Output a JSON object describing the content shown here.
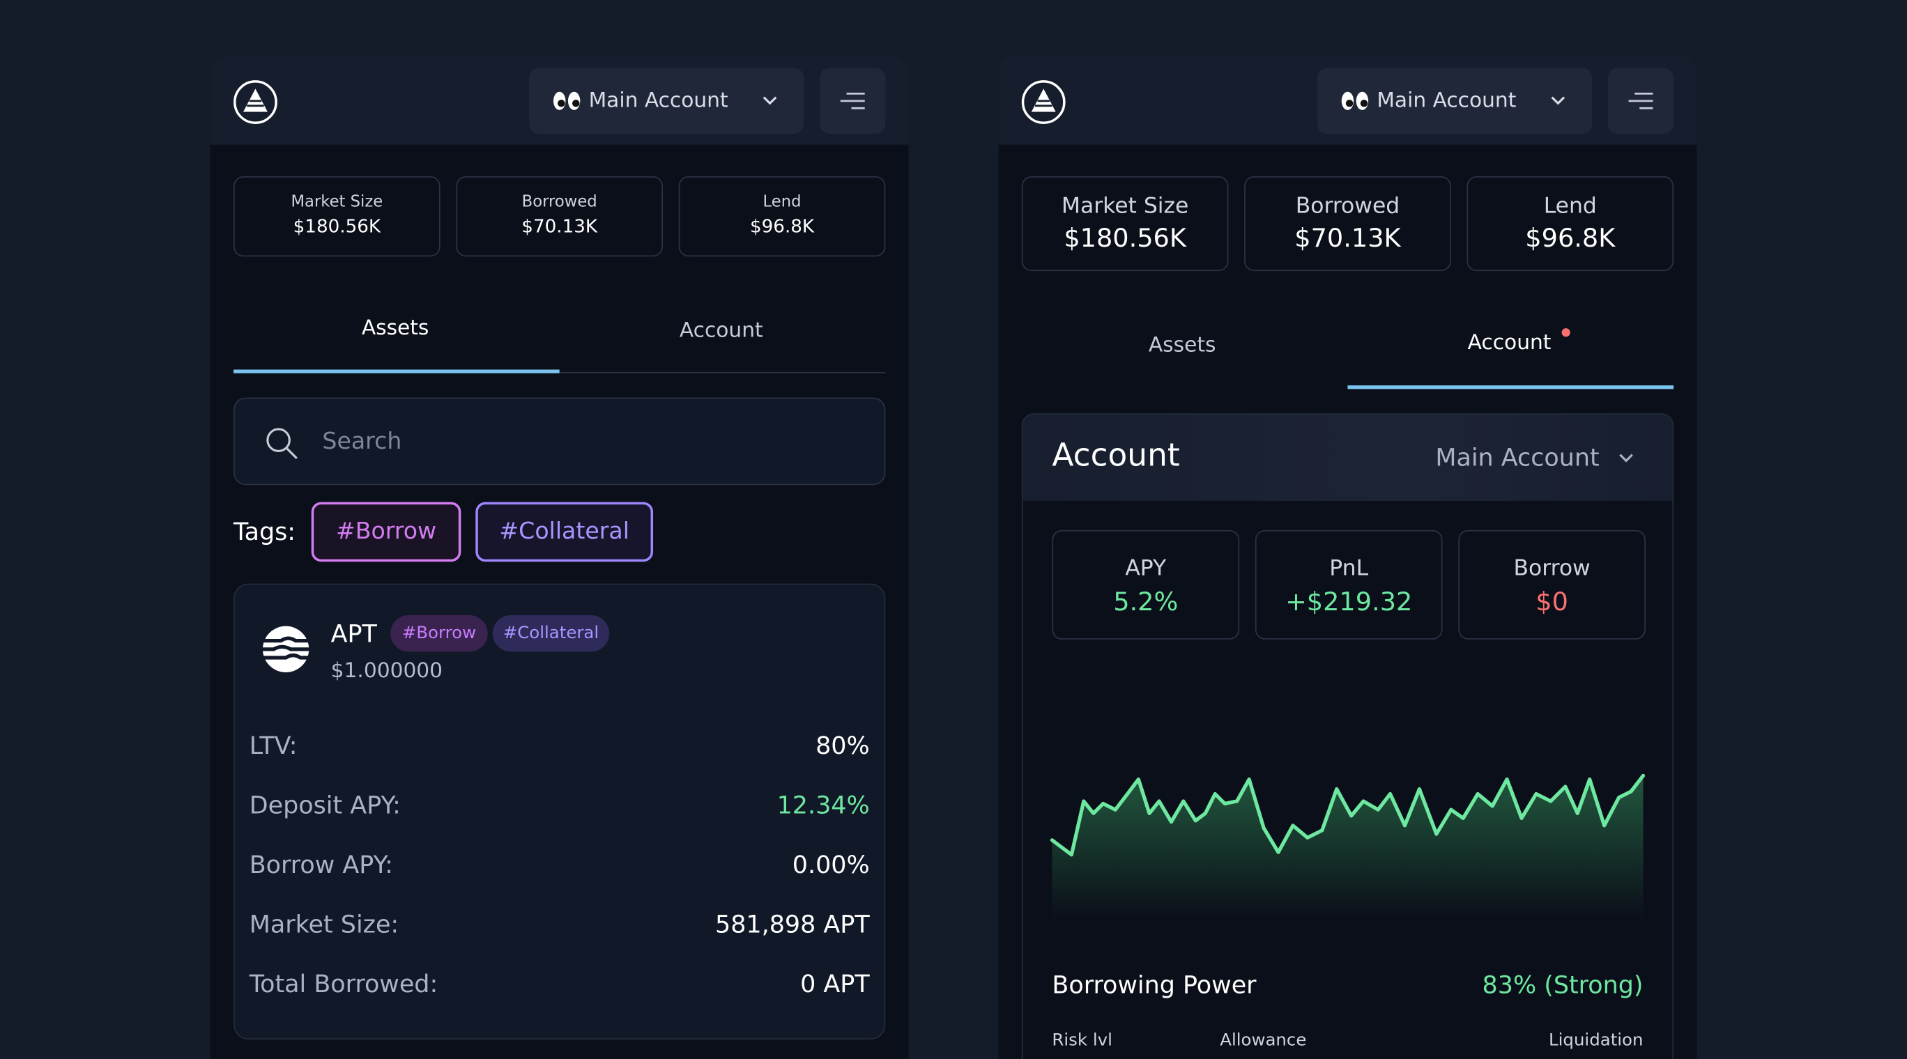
{
  "left": {
    "account": "Main Account",
    "stats": [
      {
        "label": "Market Size",
        "value": "$180.56K"
      },
      {
        "label": "Borrowed",
        "value": "$70.13K"
      },
      {
        "label": "Lend",
        "value": "$96.8K"
      }
    ],
    "tabs": [
      "Assets",
      "Account"
    ],
    "search": "Search",
    "tags_label": "Tags:",
    "tags": [
      "#Borrow",
      "#Collateral"
    ],
    "asset": {
      "symbol": "APT",
      "tags": [
        "#Borrow",
        "#Collateral"
      ],
      "price": "$1.000000",
      "rows": [
        [
          "LTV:",
          "80%"
        ],
        [
          "Deposit APY:",
          "12.34%"
        ],
        [
          "Borrow APY:",
          "0.00%"
        ],
        [
          "Market Size:",
          "581,898 APT"
        ],
        [
          "Total Borrowed:",
          "0 APT"
        ]
      ]
    }
  },
  "right": {
    "account": "Main Account",
    "stats": [
      {
        "label": "Market Size",
        "value": "$180.56K"
      },
      {
        "label": "Borrowed",
        "value": "$70.13K"
      },
      {
        "label": "Lend",
        "value": "$96.8K"
      }
    ],
    "tabs": [
      "Assets",
      "Account"
    ],
    "panel": {
      "title": "Account",
      "selector": "Main Account",
      "metrics": [
        {
          "label": "APY",
          "value": "5.2%"
        },
        {
          "label": "PnL",
          "value": "+$219.32"
        },
        {
          "label": "Borrow",
          "value": "$0"
        }
      ],
      "power_label": "Borrowing Power",
      "power_value": "83% (Strong)",
      "scale": [
        "Risk lvl",
        "Allowance",
        "Liquidation"
      ]
    }
  }
}
